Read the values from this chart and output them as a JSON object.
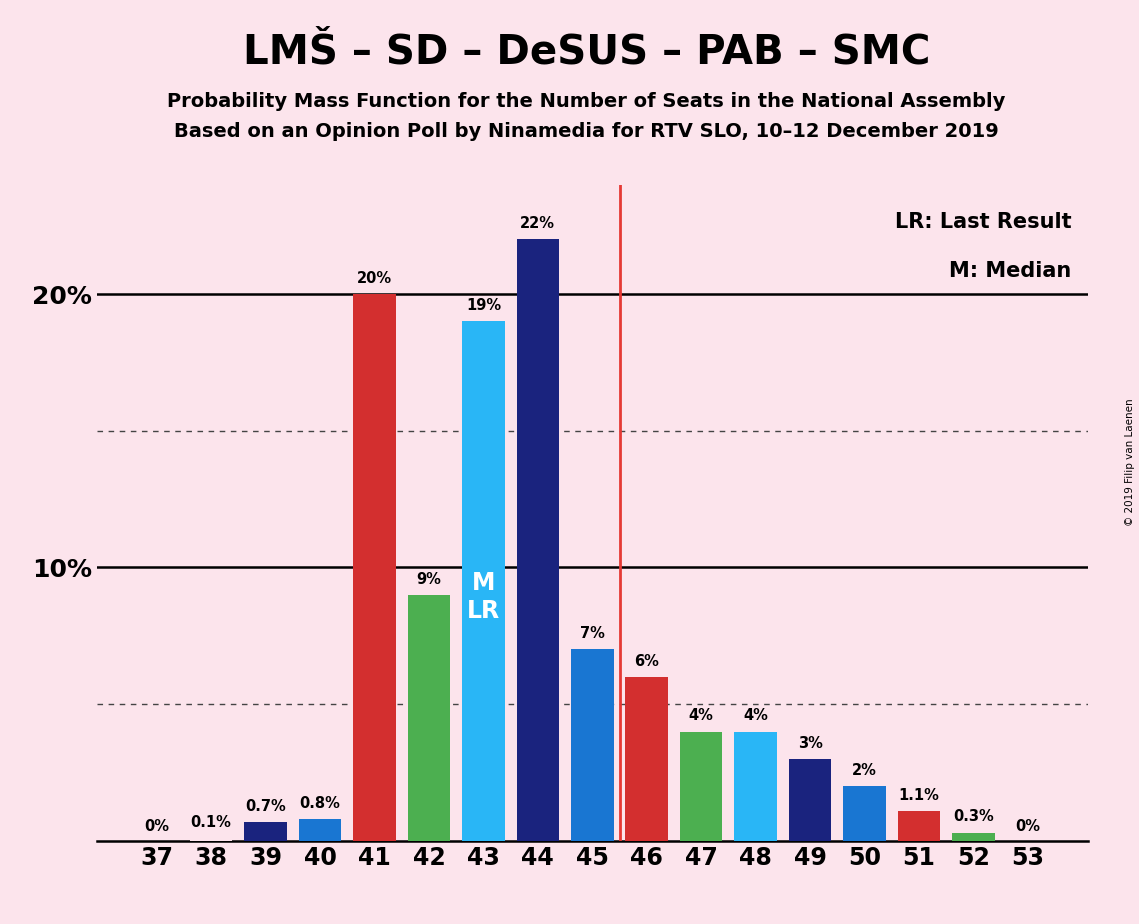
{
  "title": "LMŠ – SD – DeSUS – PAB – SMC",
  "subtitle1": "Probability Mass Function for the Number of Seats in the National Assembly",
  "subtitle2": "Based on an Opinion Poll by Ninamedia for RTV SLO, 10–12 December 2019",
  "copyright": "© 2019 Filip van Laenen",
  "seats": [
    37,
    38,
    39,
    40,
    41,
    42,
    43,
    44,
    45,
    46,
    47,
    48,
    49,
    50,
    51,
    52,
    53
  ],
  "values": [
    0.0,
    0.1,
    0.7,
    0.8,
    20.0,
    9.0,
    19.0,
    22.0,
    7.0,
    6.0,
    4.0,
    4.0,
    3.0,
    2.0,
    1.1,
    0.3,
    0.0
  ],
  "labels": [
    "0%",
    "0.1%",
    "0.7%",
    "0.8%",
    "20%",
    "9%",
    "19%",
    "22%",
    "7%",
    "6%",
    "4%",
    "4%",
    "3%",
    "2%",
    "1.1%",
    "0.3%",
    "0%"
  ],
  "colors": [
    "#fce4ec",
    "#fce4ec",
    "#1a237e",
    "#1976d2",
    "#d32f2f",
    "#4caf50",
    "#29b6f6",
    "#1a237e",
    "#1976d2",
    "#d32f2f",
    "#4caf50",
    "#29b6f6",
    "#1a237e",
    "#1976d2",
    "#d32f2f",
    "#4caf50",
    "#fce4ec"
  ],
  "median_seat": 43,
  "lr_line_seat": 45.5,
  "background_color": "#fce4ec",
  "ylim_max": 24,
  "legend_lr": "LR: Last Result",
  "legend_m": "M: Median",
  "lr_line_color": "#e53935",
  "dotted_line_color": "#444444",
  "solid_line_color": "#000000"
}
